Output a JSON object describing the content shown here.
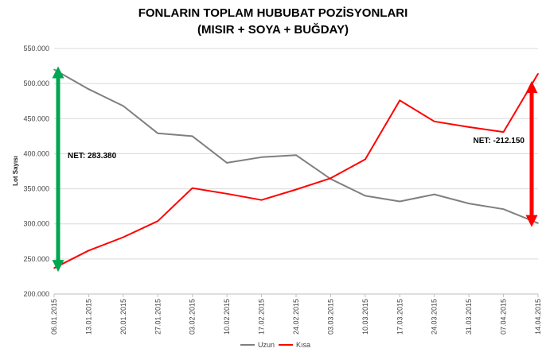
{
  "chart_data": {
    "type": "line",
    "title_line1": "FONLARIN TOPLAM HUBUBAT POZİSYONLARI",
    "title_line2": "(MISIR + SOYA + BUĞDAY)",
    "ylabel": "Lot Sayısı",
    "xlabel": "",
    "ylim": [
      200000,
      550000
    ],
    "yticks": [
      {
        "value": 550000,
        "label": "550.000"
      },
      {
        "value": 500000,
        "label": "500.000"
      },
      {
        "value": 450000,
        "label": "450.000"
      },
      {
        "value": 400000,
        "label": "400.000"
      },
      {
        "value": 350000,
        "label": "350.000"
      },
      {
        "value": 300000,
        "label": "300.000"
      },
      {
        "value": 250000,
        "label": "250.000"
      },
      {
        "value": 200000,
        "label": "200.000"
      }
    ],
    "categories": [
      "06.01.2015",
      "13.01.2015",
      "20.01.2015",
      "27.01.2015",
      "03.02.2015",
      "10.02.2015",
      "17.02.2015",
      "24.02.2015",
      "03.03.2015",
      "10.03.2015",
      "17.03.2015",
      "24.03.2015",
      "31.03.2015",
      "07.04.2015",
      "14.04.2015"
    ],
    "grid": "horizontal",
    "legend_position": "bottom",
    "series": [
      {
        "name": "Uzun",
        "color": "#7f7f7f",
        "values": [
          520000,
          492000,
          468000,
          429000,
          425000,
          387000,
          395000,
          398000,
          364000,
          340000,
          332000,
          342000,
          329000,
          321000,
          301000
        ]
      },
      {
        "name": "Kısa",
        "color": "#ff0000",
        "values": [
          237000,
          262000,
          281000,
          304000,
          351000,
          343000,
          334000,
          349000,
          365000,
          392000,
          476000,
          446000,
          438000,
          431000,
          514000
        ]
      }
    ],
    "annotations": [
      {
        "text": "NET: 283.380",
        "color": "#00a651",
        "from": 516000,
        "to": 240000,
        "category_index": 0
      },
      {
        "text": "NET: -212.150",
        "color": "#ff0000",
        "from": 495000,
        "to": 304000,
        "category_index": 14
      }
    ]
  }
}
